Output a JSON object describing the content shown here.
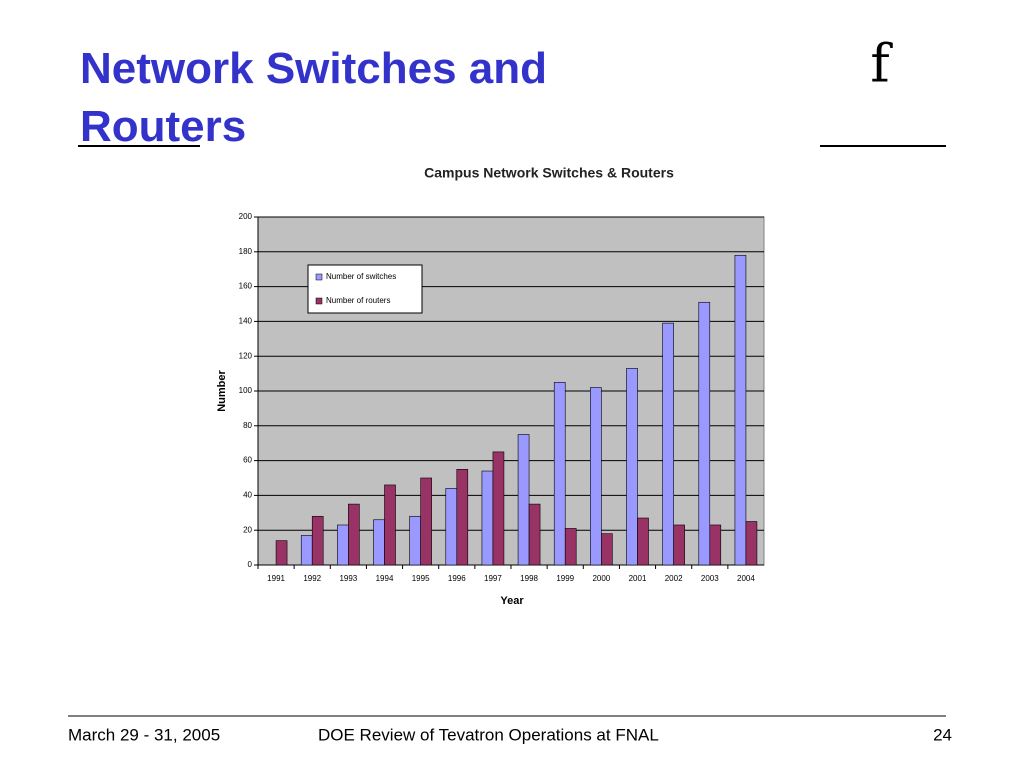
{
  "slide": {
    "title": "Network Switches and Routers",
    "logo": "f",
    "footer": {
      "date": "March 29 - 31, 2005",
      "event": "DOE Review of Tevatron Operations at FNAL",
      "page": "24"
    }
  },
  "chart_data": {
    "type": "bar",
    "title": "Campus Network Switches & Routers",
    "x_label": "Year",
    "y_label": "Number",
    "categories": [
      "1991",
      "1992",
      "1993",
      "1994",
      "1995",
      "1996",
      "1997",
      "1998",
      "1999",
      "2000",
      "2001",
      "2002",
      "2003",
      "2004"
    ],
    "series": [
      {
        "name": "Number of switches",
        "color": "#9999ff",
        "values": [
          0,
          17,
          23,
          26,
          28,
          44,
          54,
          75,
          105,
          102,
          113,
          139,
          151,
          178
        ]
      },
      {
        "name": "Number of routers",
        "color": "#993366",
        "values": [
          14,
          28,
          35,
          46,
          50,
          55,
          65,
          35,
          21,
          18,
          27,
          23,
          23,
          25
        ]
      }
    ],
    "ylim": [
      0,
      200
    ],
    "yticks": [
      0,
      20,
      40,
      60,
      80,
      100,
      120,
      140,
      160,
      180,
      200
    ],
    "grid": true,
    "legend": "upper-left",
    "plot_background": "#c0c0c0"
  }
}
